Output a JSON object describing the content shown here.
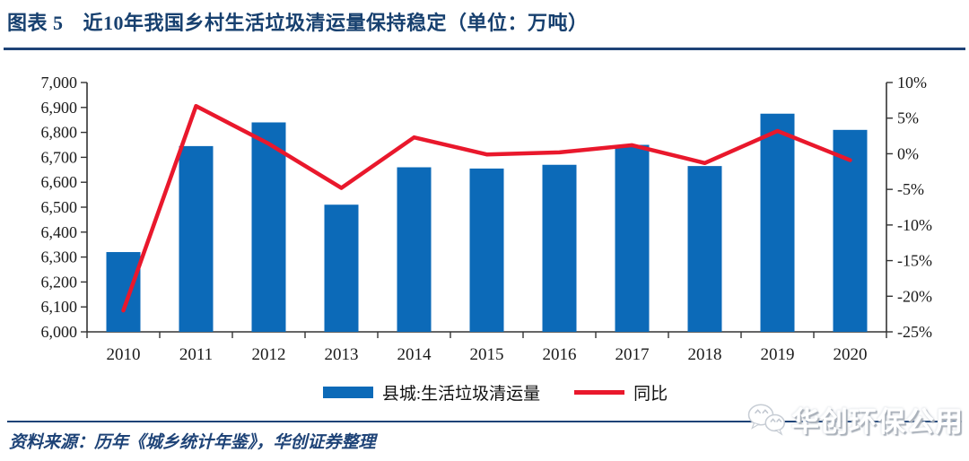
{
  "figure": {
    "label": "图表 5",
    "title": "近10年我国乡村生活垃圾清运量保持稳定（单位：万吨）"
  },
  "chart_data": {
    "type": "combo (bar + line)",
    "categories": [
      "2010",
      "2011",
      "2012",
      "2013",
      "2014",
      "2015",
      "2016",
      "2017",
      "2018",
      "2019",
      "2020"
    ],
    "series": [
      {
        "name": "县城:生活垃圾清运量",
        "type": "bar",
        "axis": "left",
        "color": "#0c6ab8",
        "values": [
          6320,
          6745,
          6840,
          6510,
          6660,
          6655,
          6670,
          6750,
          6665,
          6875,
          6810
        ]
      },
      {
        "name": "同比",
        "type": "line",
        "axis": "right",
        "color": "#e9182c",
        "values": [
          -22.0,
          6.7,
          1.4,
          -4.8,
          2.3,
          -0.1,
          0.2,
          1.2,
          -1.3,
          3.2,
          -0.9
        ]
      }
    ],
    "left_axis": {
      "min": 6000,
      "max": 7000,
      "step": 100,
      "tick_labels": [
        "7,000",
        "6,900",
        "6,800",
        "6,700",
        "6,600",
        "6,500",
        "6,400",
        "6,300",
        "6,200",
        "6,100",
        "6,000"
      ]
    },
    "right_axis": {
      "min": -25,
      "max": 10,
      "step": 5,
      "tick_labels": [
        "10%",
        "5%",
        "0%",
        "-5%",
        "-10%",
        "-15%",
        "-20%",
        "-25%"
      ]
    },
    "grid": false,
    "legend_position": "bottom"
  },
  "source_note": "资料来源：历年《城乡统计年鉴》，华创证券整理",
  "watermark": {
    "icon": "wechat-logo-icon",
    "text": "华创环保公用"
  },
  "colors": {
    "accent_navy": "#1e4377",
    "bar_blue": "#0c6ab8",
    "line_red": "#e9182c",
    "axis": "#333333"
  }
}
